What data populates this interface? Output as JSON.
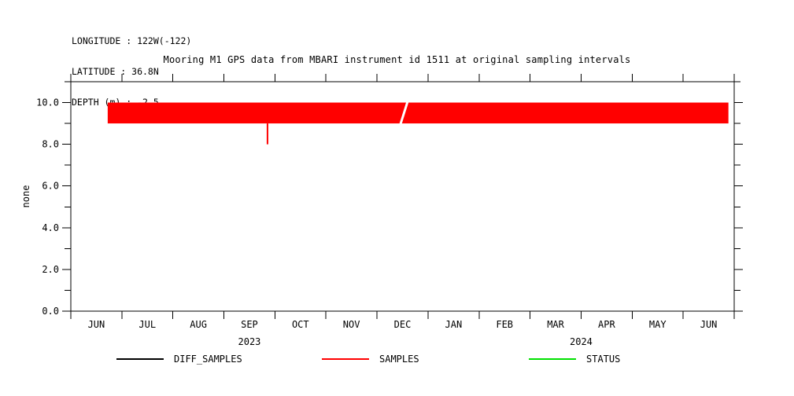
{
  "header": {
    "longitude": "LONGITUDE : 122W(-122)",
    "latitude": "LATITUDE : 36.8N",
    "depth": "DEPTH (m) : -2.5"
  },
  "chart_data": {
    "type": "line",
    "title": "Mooring M1 GPS data from MBARI instrument id 1511 at original sampling intervals",
    "xlabel": "",
    "ylabel": "none",
    "ylim": [
      0,
      11
    ],
    "y_major_tick_labels": [
      "0.0",
      "2.0",
      "4.0",
      "6.0",
      "8.0",
      "10.0"
    ],
    "y_minor_tick_step": 1,
    "x_start_date": "2023-06-01",
    "x_total_months": 13,
    "x_month_labels": [
      "JUN",
      "JUL",
      "AUG",
      "SEP",
      "OCT",
      "NOV",
      "DEC",
      "JAN",
      "FEB",
      "MAR",
      "APR",
      "MAY",
      "JUN"
    ],
    "x_year_labels": [
      {
        "label": "2023",
        "month_span": [
          0,
          7
        ]
      },
      {
        "label": "2024",
        "month_span": [
          7,
          13
        ]
      }
    ],
    "grid": false,
    "legend_position": "bottom",
    "series": [
      {
        "name": "DIFF_SAMPLES",
        "color": "#000000",
        "visible_data": "none"
      },
      {
        "name": "SAMPLES",
        "color": "#ff0000",
        "visible_data": "band",
        "band": {
          "start": "2023-06-23",
          "end": "2024-06-28",
          "low": 9.0,
          "high": 10.0,
          "gap_date": "2023-12-15",
          "dip": {
            "date": "2023-09-27",
            "value": 8.0
          }
        }
      },
      {
        "name": "STATUS",
        "color": "#00e000",
        "visible_data": "none"
      }
    ]
  },
  "legend": {
    "items": [
      {
        "label": "DIFF_SAMPLES",
        "color": "#000000"
      },
      {
        "label": "SAMPLES",
        "color": "#ff0000"
      },
      {
        "label": "STATUS",
        "color": "#00e000"
      }
    ]
  }
}
